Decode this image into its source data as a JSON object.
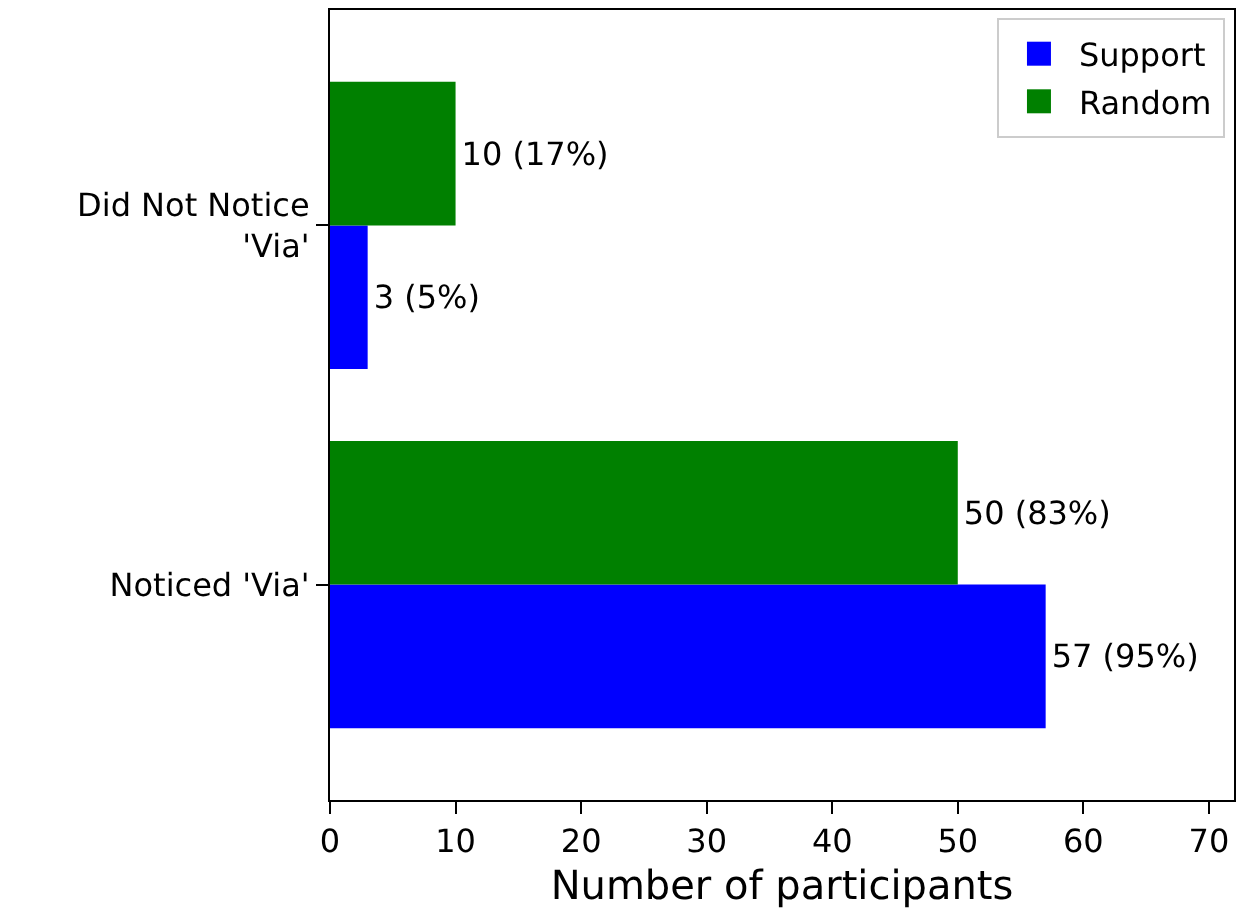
{
  "chart_data": {
    "type": "bar",
    "orientation": "horizontal",
    "xlabel": "Number of participants",
    "categories": [
      "Did Not Notice 'Via'",
      "Noticed 'Via'"
    ],
    "series": [
      {
        "name": "Support",
        "color": "#0000ff",
        "values": [
          3,
          57
        ],
        "value_labels": [
          "3 (5%)",
          "57 (95%)"
        ]
      },
      {
        "name": "Random",
        "color": "#008000",
        "values": [
          10,
          50
        ],
        "value_labels": [
          "10 (17%)",
          "50 (83%)"
        ]
      }
    ],
    "xlim": [
      0,
      72
    ],
    "xticks": [
      0,
      10,
      20,
      30,
      40,
      50,
      60,
      70
    ],
    "grid": false,
    "legend": "top right"
  }
}
